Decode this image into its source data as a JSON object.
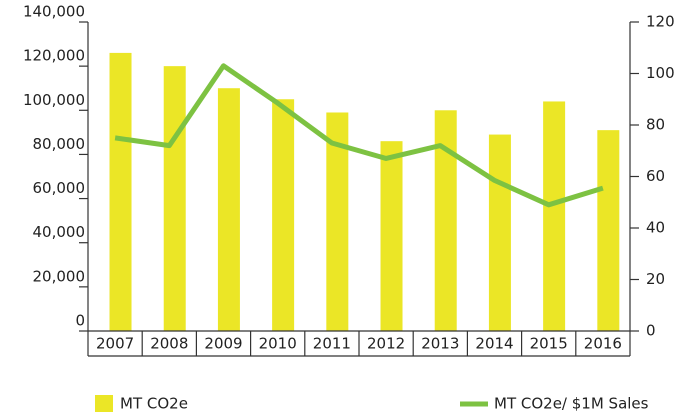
{
  "chart_data": {
    "type": "bar",
    "categories": [
      "2007",
      "2008",
      "2009",
      "2010",
      "2011",
      "2012",
      "2013",
      "2014",
      "2015",
      "2016"
    ],
    "series": [
      {
        "name": "MT CO2e",
        "type": "bar",
        "color": "#ebe626",
        "values": [
          126000,
          120000,
          110000,
          105000,
          99000,
          86000,
          100000,
          89000,
          104000,
          91000
        ]
      },
      {
        "name": "MT CO2e/ $1M Sales",
        "type": "line",
        "axis": "y2",
        "color": "#7dc242",
        "values": [
          75,
          72,
          103,
          88.5,
          73,
          67,
          72,
          58.5,
          49,
          55.5
        ]
      }
    ],
    "ylim": [
      0,
      140000
    ],
    "yticks": [
      0,
      {
        "value": 20000,
        "label": "20,000"
      },
      {
        "value": 40000,
        "label": "40,000"
      },
      {
        "value": 60000,
        "label": "60,000"
      },
      {
        "value": 80000,
        "label": "80,000"
      },
      {
        "value": 100000,
        "label": "100,000"
      },
      {
        "value": 120000,
        "label": "120,000"
      },
      {
        "value": 140000,
        "label": "140,000"
      }
    ],
    "y2lim": [
      0,
      120
    ],
    "y2ticks": [
      0,
      20,
      40,
      60,
      80,
      100,
      120
    ],
    "legend": "bottom"
  }
}
